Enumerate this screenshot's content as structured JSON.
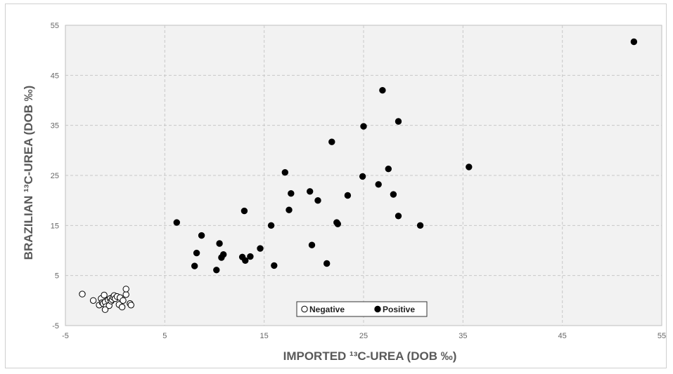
{
  "chart_data": {
    "type": "scatter",
    "xlabel": "IMPORTED ¹³C-UREA (DOB ‰)",
    "ylabel": "BRAZILIAN ¹³C-UREA (DOB ‰)",
    "xlim": [
      -5,
      55
    ],
    "ylim": [
      -5,
      55
    ],
    "xticks": [
      "-5",
      "5",
      "15",
      "25",
      "35",
      "45",
      "55"
    ],
    "yticks": [
      "-5",
      "5",
      "15",
      "25",
      "35",
      "45",
      "55"
    ],
    "grid": true,
    "legend_position": "bottom-center",
    "series": [
      {
        "name": "Negative",
        "marker": "open-circle",
        "color": "#000000",
        "points": [
          [
            -3.3,
            1.3
          ],
          [
            -2.2,
            0.0
          ],
          [
            -1.6,
            -0.9
          ],
          [
            -1.4,
            0.4
          ],
          [
            -1.3,
            -0.4
          ],
          [
            -1.2,
            -0.6
          ],
          [
            -1.1,
            1.1
          ],
          [
            -1.0,
            -0.3
          ],
          [
            -0.9,
            -1.2
          ],
          [
            -0.7,
            0.1
          ],
          [
            -0.6,
            -1.0
          ],
          [
            -0.5,
            0.4
          ],
          [
            -0.4,
            -0.1
          ],
          [
            -0.3,
            0.2
          ],
          [
            -0.2,
            0.7
          ],
          [
            -0.1,
            1.0
          ],
          [
            0.0,
            0.4
          ],
          [
            0.2,
            0.8
          ],
          [
            0.4,
            -0.8
          ],
          [
            0.5,
            0.6
          ],
          [
            0.7,
            -1.3
          ],
          [
            0.8,
            0.0
          ],
          [
            1.1,
            1.2
          ],
          [
            1.1,
            2.3
          ],
          [
            1.5,
            -0.6
          ],
          [
            1.6,
            -0.9
          ],
          [
            -1.0,
            -1.8
          ]
        ]
      },
      {
        "name": "Positive",
        "marker": "filled-circle",
        "color": "#000000",
        "points": [
          [
            6.2,
            15.6
          ],
          [
            8.0,
            6.9
          ],
          [
            8.2,
            9.5
          ],
          [
            8.7,
            13.0
          ],
          [
            10.2,
            6.1
          ],
          [
            10.5,
            11.4
          ],
          [
            10.7,
            8.6
          ],
          [
            10.9,
            9.2
          ],
          [
            12.8,
            8.7
          ],
          [
            13.0,
            17.9
          ],
          [
            13.1,
            8.0
          ],
          [
            13.6,
            8.8
          ],
          [
            14.6,
            10.4
          ],
          [
            15.7,
            15.0
          ],
          [
            16.0,
            7.0
          ],
          [
            17.1,
            25.6
          ],
          [
            17.5,
            18.1
          ],
          [
            17.7,
            21.4
          ],
          [
            19.6,
            21.8
          ],
          [
            19.8,
            11.1
          ],
          [
            20.4,
            20.0
          ],
          [
            21.3,
            7.4
          ],
          [
            21.8,
            31.7
          ],
          [
            22.3,
            15.6
          ],
          [
            22.4,
            15.3
          ],
          [
            23.4,
            21.0
          ],
          [
            24.9,
            24.8
          ],
          [
            25.0,
            34.8
          ],
          [
            26.5,
            23.2
          ],
          [
            26.9,
            42.0
          ],
          [
            27.5,
            26.3
          ],
          [
            28.0,
            21.2
          ],
          [
            28.5,
            16.9
          ],
          [
            28.5,
            35.8
          ],
          [
            30.7,
            15.0
          ],
          [
            35.6,
            26.7
          ],
          [
            52.2,
            51.7
          ]
        ]
      }
    ]
  }
}
